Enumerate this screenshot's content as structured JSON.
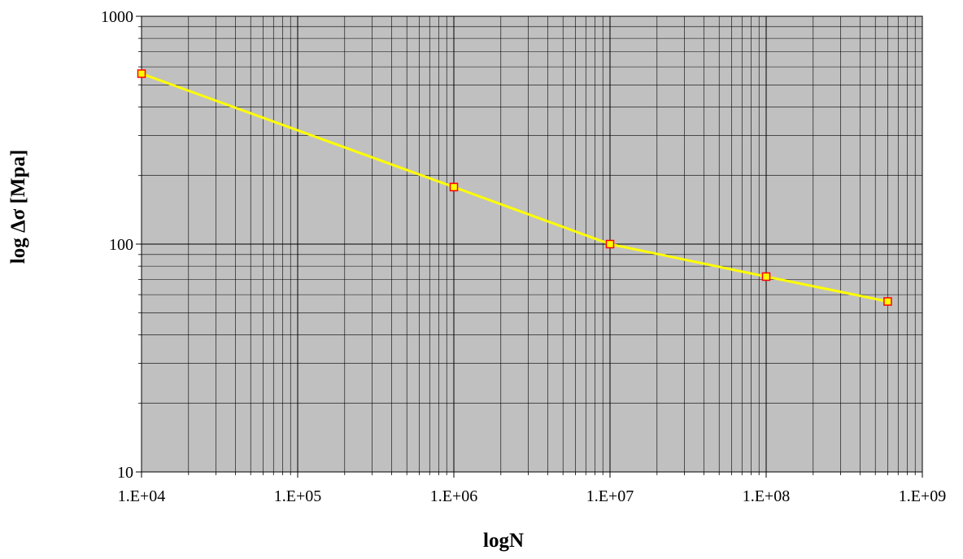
{
  "chart_data": {
    "type": "line",
    "xlabel": "logN",
    "ylabel": "log Δσ [Mpa]",
    "x_scale": "log",
    "y_scale": "log",
    "xlim": [
      10000,
      1000000000
    ],
    "ylim": [
      10,
      1000
    ],
    "x_ticks": [
      "1.E+04",
      "1.E+05",
      "1.E+06",
      "1.E+07",
      "1.E+08",
      "1.E+09"
    ],
    "y_ticks": [
      "10",
      "100",
      "1000"
    ],
    "grid": true,
    "legend": "none",
    "series": [
      {
        "x": [
          10000,
          1000000,
          10000000,
          100000000,
          600000000
        ],
        "y": [
          560,
          178,
          100,
          72,
          56
        ]
      }
    ],
    "colors": {
      "plot_background": "#c0c0c0",
      "grid": "#000000",
      "line": "#ffff00",
      "marker_fill": "#ffff00",
      "marker_edge": "#ff0000"
    }
  }
}
